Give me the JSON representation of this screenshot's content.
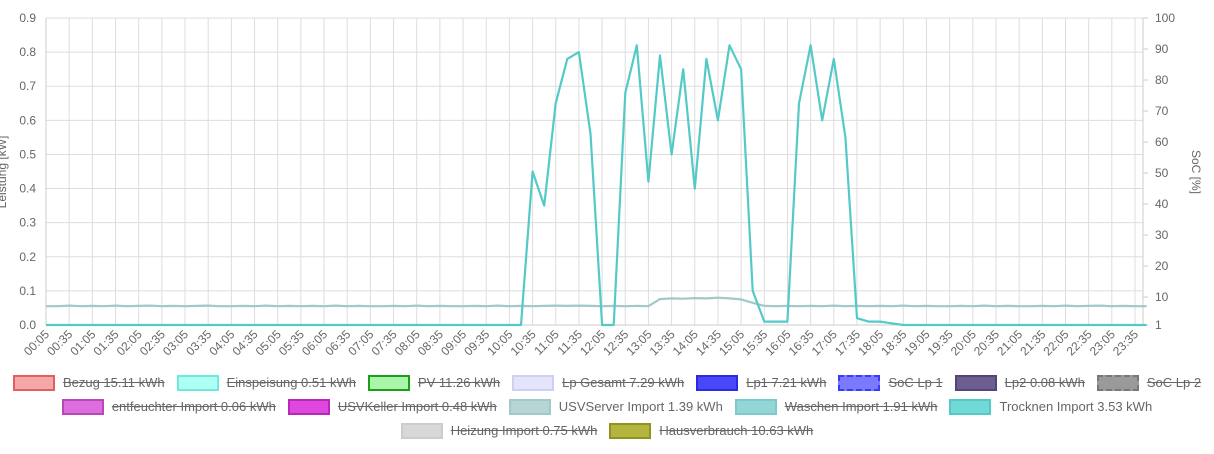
{
  "chart_data": {
    "type": "line",
    "ylabel": "Leistung [kW]",
    "y2label": "SoC [%]",
    "categories": [
      "00:05",
      null,
      "00:35",
      null,
      "01:05",
      null,
      "01:35",
      null,
      "02:05",
      null,
      "02:35",
      null,
      "03:05",
      null,
      "03:35",
      null,
      "04:05",
      null,
      "04:35",
      null,
      "05:05",
      null,
      "05:35",
      null,
      "06:05",
      null,
      "06:35",
      null,
      "07:05",
      null,
      "07:35",
      null,
      "08:05",
      null,
      "08:35",
      null,
      "09:05",
      null,
      "09:35",
      null,
      "10:05",
      null,
      "10:35",
      null,
      "11:05",
      null,
      "11:35",
      null,
      "12:05",
      null,
      "12:35",
      null,
      "13:05",
      null,
      "13:35",
      null,
      "14:05",
      null,
      "14:35",
      null,
      "15:05",
      null,
      "15:35",
      null,
      "16:05",
      null,
      "16:35",
      null,
      "17:05",
      null,
      "17:35",
      null,
      "18:05",
      null,
      "18:35",
      null,
      "19:05",
      null,
      "19:35",
      null,
      "20:05",
      null,
      "20:35",
      null,
      "21:05",
      null,
      "21:35",
      null,
      "22:05",
      null,
      "22:35",
      null,
      "23:05",
      null,
      "23:35",
      null
    ],
    "ylim": [
      0,
      0.9
    ],
    "yticks": [
      {
        "value": 0,
        "label": "0.0"
      },
      0.1,
      0.2,
      0.3,
      0.4,
      0.5,
      0.6,
      0.7,
      0.8,
      0.9
    ],
    "y2lim": [
      1,
      100
    ],
    "y2ticks": [
      1,
      10,
      20,
      30,
      40,
      50,
      60,
      70,
      80,
      90,
      100
    ],
    "grid": true,
    "series": [
      {
        "name": "Bezug 15.11 kWh",
        "color": "#f4a8a8",
        "border": "#e06060",
        "hidden": true
      },
      {
        "name": "Einspeisung 0.51 kWh",
        "color": "#aefff4",
        "border": "#70e8dc",
        "hidden": true
      },
      {
        "name": "PV 11.26 kWh",
        "color": "#aaf5aa",
        "border": "#18a018",
        "hidden": true
      },
      {
        "name": "Lp Gesamt 7.29 kWh",
        "color": "#e4e4fa",
        "border": "#cfcff2",
        "hidden": true
      },
      {
        "name": "Lp1 7.21 kWh",
        "color": "#4848f8",
        "border": "#2a2ae0",
        "hidden": true
      },
      {
        "name": "SoC Lp 1",
        "color": "#7a7aff",
        "border": "#3a3aff",
        "dashed": true,
        "hidden": true
      },
      {
        "name": "Lp2 0.08 kWh",
        "color": "#6e5e90",
        "border": "#54457a",
        "hidden": true
      },
      {
        "name": "SoC Lp 2",
        "color": "#9a9a9a",
        "border": "#777777",
        "dashed": true,
        "hidden": true
      },
      {
        "name": "entfeuchter Import 0.06 kWh",
        "color": "#de6ede",
        "border": "#b848b8",
        "hidden": true
      },
      {
        "name": "USVKeller Import 0.48 kWh",
        "color": "#de48de",
        "border": "#b828b8",
        "hidden": true
      },
      {
        "name": "USVServer Import 1.39 kWh",
        "color": "#b6d6d6",
        "border": "#a2c8c8",
        "hidden": false,
        "values": [
          0.055,
          0.055,
          0.057,
          0.055,
          0.056,
          0.055,
          0.057,
          0.055,
          0.056,
          0.057,
          0.055,
          0.056,
          0.055,
          0.056,
          0.057,
          0.055,
          0.055,
          0.056,
          0.055,
          0.057,
          0.055,
          0.056,
          0.055,
          0.056,
          0.055,
          0.057,
          0.055,
          0.056,
          0.055,
          0.055,
          0.056,
          0.055,
          0.057,
          0.055,
          0.056,
          0.055,
          0.055,
          0.056,
          0.055,
          0.057,
          0.055,
          0.056,
          0.055,
          0.056,
          0.057,
          0.056,
          0.057,
          0.056,
          0.055,
          0.056,
          0.055,
          0.056,
          0.055,
          0.076,
          0.078,
          0.077,
          0.079,
          0.078,
          0.08,
          0.078,
          0.075,
          0.065,
          0.056,
          0.055,
          0.056,
          0.055,
          0.056,
          0.055,
          0.057,
          0.055,
          0.056,
          0.055,
          0.056,
          0.055,
          0.057,
          0.055,
          0.056,
          0.055,
          0.055,
          0.056,
          0.055,
          0.057,
          0.055,
          0.056,
          0.055,
          0.055,
          0.056,
          0.055,
          0.057,
          0.055,
          0.056,
          0.057,
          0.055,
          0.056,
          0.055,
          0.055
        ]
      },
      {
        "name": "Waschen Import 1.91 kWh",
        "color": "#92d6d6",
        "border": "#7ccaca",
        "hidden": true
      },
      {
        "name": "Trocknen Import 3.53 kWh",
        "color": "#72dad6",
        "border": "#54cac6",
        "hidden": false,
        "values": [
          0,
          0,
          0,
          0,
          0,
          0,
          0,
          0,
          0,
          0,
          0,
          0,
          0,
          0,
          0,
          0,
          0,
          0,
          0,
          0,
          0,
          0,
          0,
          0,
          0,
          0,
          0,
          0,
          0,
          0,
          0,
          0,
          0,
          0,
          0,
          0,
          0,
          0,
          0,
          0,
          0,
          0,
          0.45,
          0.35,
          0.65,
          0.78,
          0.8,
          0.56,
          0,
          0,
          0.68,
          0.82,
          0.42,
          0.79,
          0.5,
          0.75,
          0.4,
          0.78,
          0.6,
          0.82,
          0.75,
          0.1,
          0.01,
          0.01,
          0.01,
          0.65,
          0.82,
          0.6,
          0.78,
          0.55,
          0.02,
          0.01,
          0.01,
          0.005,
          0,
          0,
          0,
          0,
          0,
          0,
          0,
          0,
          0,
          0,
          0,
          0,
          0,
          0,
          0,
          0,
          0,
          0,
          0,
          0,
          0,
          0
        ]
      },
      {
        "name": "Heizung Import 0.75 kWh",
        "color": "#d8d8d8",
        "border": "#cccccc",
        "hidden": true
      },
      {
        "name": "Hausverbrauch 10.63 kWh",
        "color": "#b4b43e",
        "border": "#92921e",
        "hidden": true
      }
    ]
  }
}
